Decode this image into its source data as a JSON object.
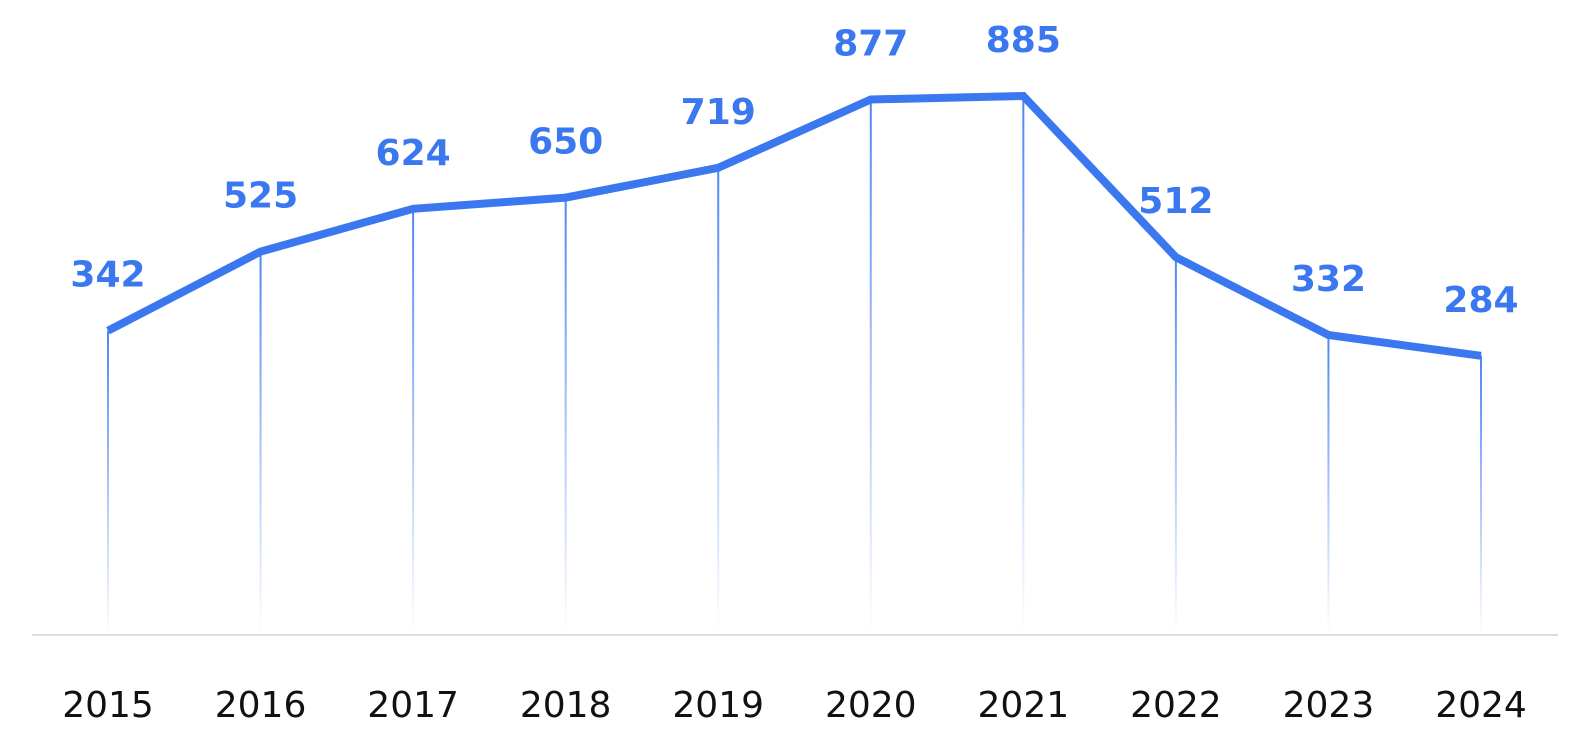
{
  "chart_data": {
    "type": "line",
    "title": "",
    "xlabel": "",
    "ylabel": "",
    "categories": [
      "2015",
      "2016",
      "2017",
      "2018",
      "2019",
      "2020",
      "2021",
      "2022",
      "2023",
      "2024"
    ],
    "values": [
      342,
      525,
      624,
      650,
      719,
      877,
      885,
      512,
      332,
      284
    ],
    "data_labels": [
      "342",
      "525",
      "624",
      "650",
      "719",
      "877",
      "885",
      "512",
      "332",
      "284"
    ],
    "ylim": [
      -362,
      885
    ],
    "grid": false,
    "legend": "none",
    "colors": {
      "line": "#3b78f0",
      "label": "#3b78f0",
      "baseline": "#dcdcdc",
      "tick_text": "#111111"
    }
  }
}
